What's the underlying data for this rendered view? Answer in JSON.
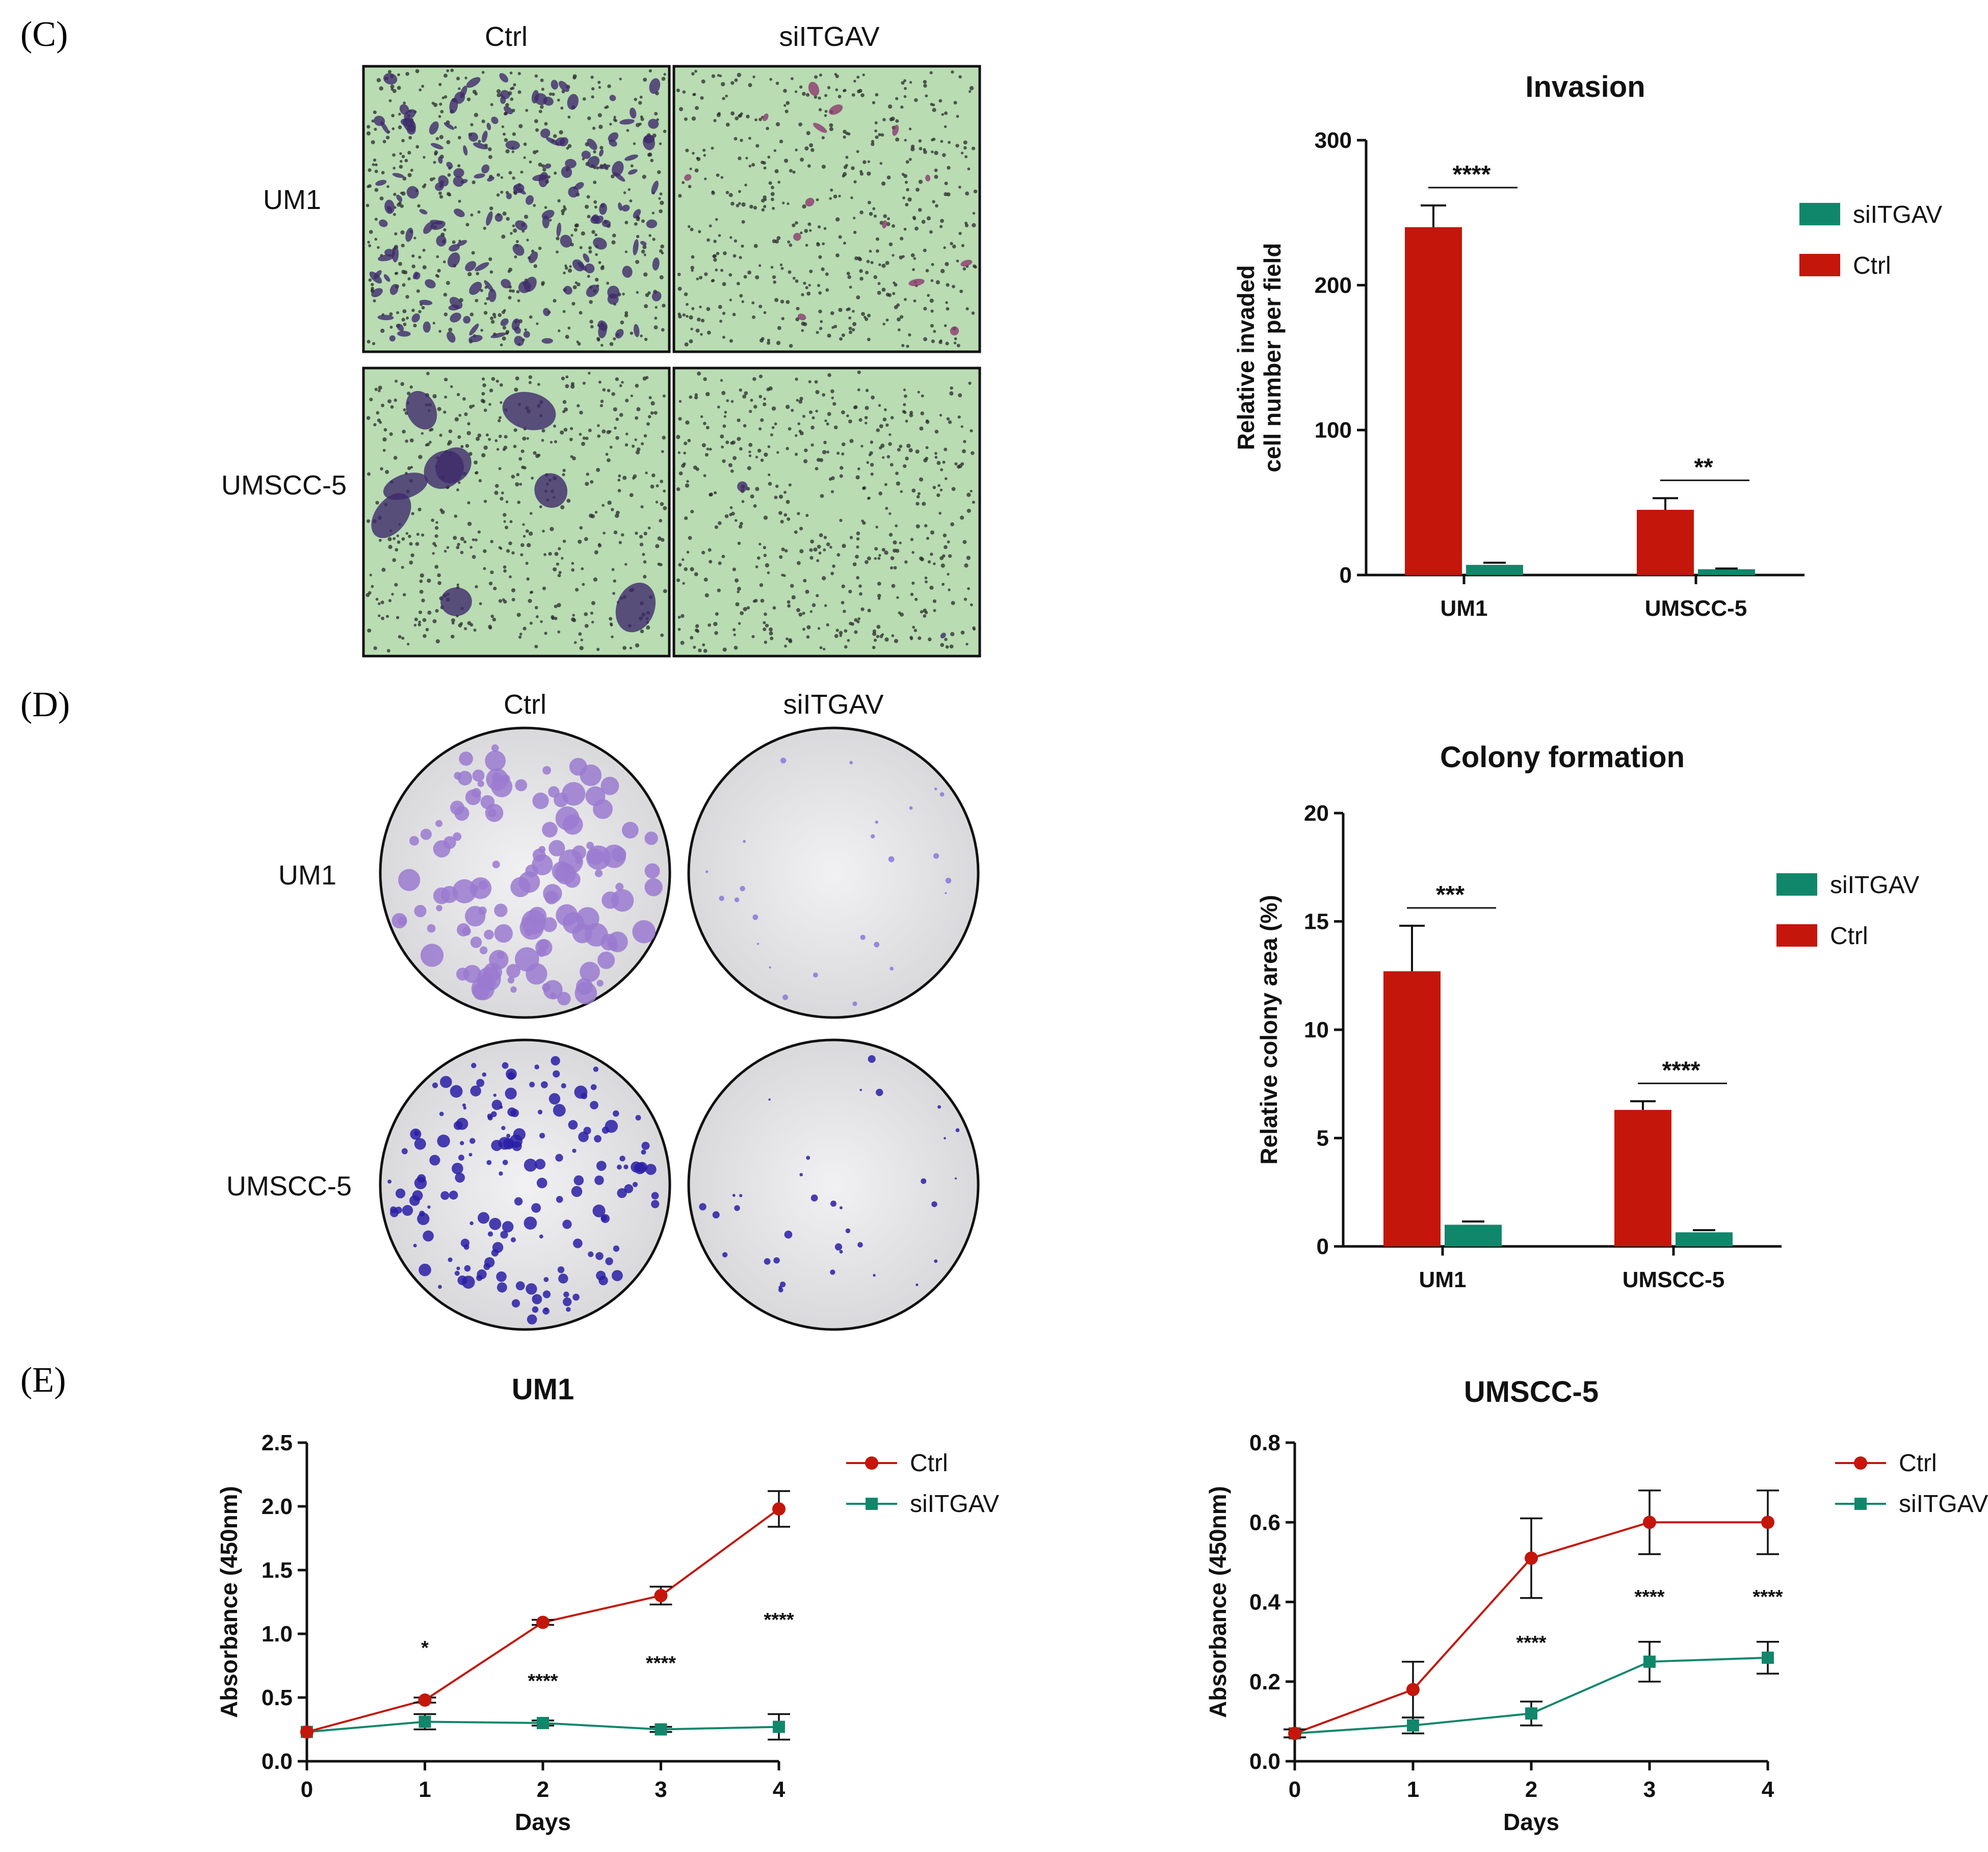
{
  "panels": {
    "C": {
      "letter": "(C)",
      "col_labels": [
        "Ctrl",
        "siITGAV"
      ],
      "row_labels": [
        "UM1",
        "UMSCC-5"
      ]
    },
    "D": {
      "letter": "(D)",
      "col_labels": [
        "Ctrl",
        "siITGAV"
      ],
      "row_labels": [
        "UM1",
        "UMSCC-5"
      ]
    },
    "E": {
      "letter": "(E)"
    }
  },
  "colors": {
    "ctrl": "#c4160b",
    "siITGAV": "#10876b",
    "micro_bg": "#b9dcb3",
    "dish_bg": "#e6e6e8"
  },
  "chart_data": [
    {
      "id": "invasion",
      "type": "bar",
      "title": "Invasion",
      "ylabel": "Relative invaded\ncell number per field",
      "ylabel_lines": [
        "Relative invaded",
        "cell number per field"
      ],
      "xlabel": "",
      "categories": [
        "UM1",
        "UMSCC-5"
      ],
      "ylim": [
        0,
        300
      ],
      "yticks": [
        "0",
        "100",
        "200",
        "300"
      ],
      "series": [
        {
          "name": "Ctrl",
          "values": [
            240,
            45
          ],
          "errors": [
            15,
            8
          ]
        },
        {
          "name": "siITGAV",
          "values": [
            7,
            4
          ],
          "errors": [
            1.5,
            0.5
          ]
        }
      ],
      "legend": [
        "siITGAV",
        "Ctrl"
      ],
      "legend_position": "right",
      "significance": [
        "****",
        "**"
      ]
    },
    {
      "id": "colony",
      "type": "bar",
      "title": "Colony formation",
      "ylabel": "Relative colony area (%)",
      "xlabel": "",
      "categories": [
        "UM1",
        "UMSCC-5"
      ],
      "ylim": [
        0,
        20
      ],
      "yticks": [
        "0",
        "5",
        "10",
        "15",
        "20"
      ],
      "series": [
        {
          "name": "Ctrl",
          "values": [
            12.7,
            6.3
          ],
          "errors": [
            2.1,
            0.4
          ]
        },
        {
          "name": "siITGAV",
          "values": [
            1.0,
            0.65
          ],
          "errors": [
            0.15,
            0.1
          ]
        }
      ],
      "legend": [
        "siITGAV",
        "Ctrl"
      ],
      "legend_position": "right",
      "significance": [
        "***",
        "****"
      ]
    },
    {
      "id": "um1_growth",
      "type": "line",
      "title": "UM1",
      "xlabel": "Days",
      "ylabel": "Absorbance (450nm)",
      "x": [
        0,
        1,
        2,
        3,
        4
      ],
      "xticks": [
        "0",
        "1",
        "2",
        "3",
        "4"
      ],
      "ylim": [
        0,
        2.5
      ],
      "yticks": [
        "0.0",
        "0.5",
        "1.0",
        "1.5",
        "2.0",
        "2.5"
      ],
      "series": [
        {
          "name": "Ctrl",
          "values": [
            0.23,
            0.48,
            1.09,
            1.3,
            1.98
          ],
          "errors": [
            0.0,
            0.02,
            0.02,
            0.07,
            0.14
          ]
        },
        {
          "name": "siITGAV",
          "values": [
            0.23,
            0.31,
            0.3,
            0.25,
            0.27
          ],
          "errors": [
            0.0,
            0.06,
            0.02,
            0.02,
            0.1
          ]
        }
      ],
      "legend": [
        "Ctrl",
        "siITGAV"
      ],
      "legend_position": "top-right",
      "significance": [
        "",
        "*",
        "****",
        "****",
        "****"
      ]
    },
    {
      "id": "umscc5_growth",
      "type": "line",
      "title": "UMSCC-5",
      "xlabel": "Days",
      "ylabel": "Absorbance (450nm)",
      "x": [
        0,
        1,
        2,
        3,
        4
      ],
      "xticks": [
        "0",
        "1",
        "2",
        "3",
        "4"
      ],
      "ylim": [
        0,
        0.8
      ],
      "yticks": [
        "0.0",
        "0.2",
        "0.4",
        "0.6",
        "0.8"
      ],
      "series": [
        {
          "name": "Ctrl",
          "values": [
            0.07,
            0.18,
            0.51,
            0.6,
            0.6
          ],
          "errors": [
            0.01,
            0.07,
            0.1,
            0.08,
            0.08
          ]
        },
        {
          "name": "siITGAV",
          "values": [
            0.07,
            0.09,
            0.12,
            0.25,
            0.26
          ],
          "errors": [
            0.01,
            0.02,
            0.03,
            0.05,
            0.04
          ]
        }
      ],
      "legend": [
        "Ctrl",
        "siITGAV"
      ],
      "legend_position": "top-right",
      "significance": [
        "",
        "",
        "****",
        "****",
        "****"
      ]
    }
  ]
}
